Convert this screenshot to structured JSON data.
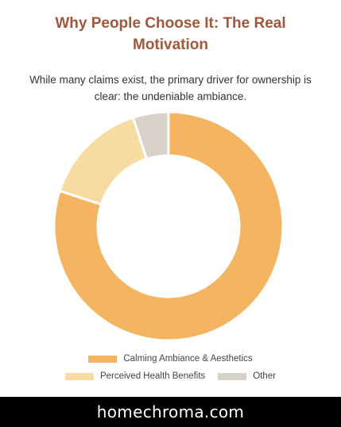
{
  "header": {
    "title_line1": "Why People Choose It: The Real",
    "title_line2": "Motivation",
    "subtitle_line1": "While many claims exist, the primary driver for ownership is",
    "subtitle_line2": "clear: the undeniable ambiance."
  },
  "chart_data": {
    "type": "pie",
    "variant": "doughnut",
    "categories": [
      "Calming Ambiance & Aesthetics",
      "Perceived Health Benefits",
      "Other"
    ],
    "values": [
      80,
      15,
      5
    ],
    "colors": [
      "#f5b461",
      "#f8dba1",
      "#d8d1c8"
    ],
    "legend_position": "bottom"
  },
  "footer": {
    "brand": "homechroma.com"
  }
}
